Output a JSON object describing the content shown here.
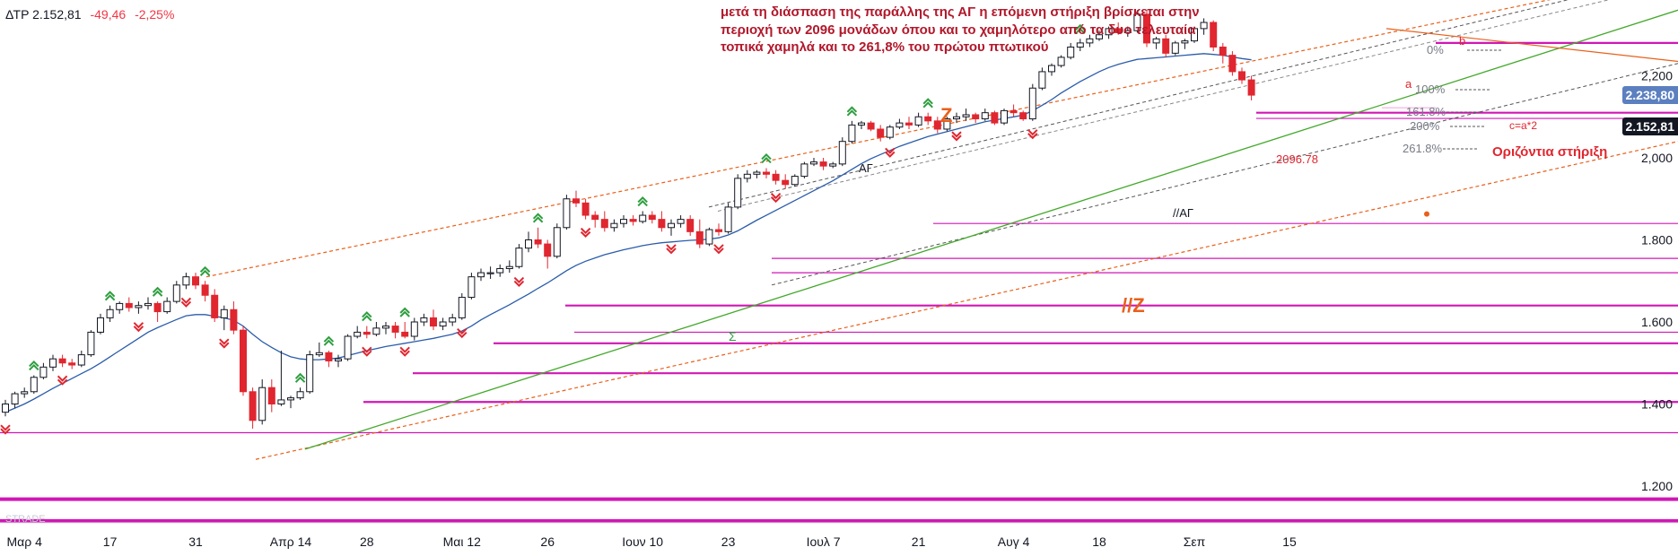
{
  "header": {
    "symbol": "ΔΤΡ",
    "last": "2.152,81",
    "change": "-49,46",
    "change_pct": "-2,25%"
  },
  "annotation": {
    "lines": [
      "μετά τη διάσπαση της παράλλης της ΑΓ η επόμενη στήριξη βρίσκεται στην",
      "περιοχή των 2096 μονάδων όπου και το χαμηλότερο από τα δυο τελευταία",
      "τοπικά χαμηλά και το 261,8% του πρώτου πτωτικού"
    ]
  },
  "price_badges": {
    "ma_value": "2.238,80",
    "last_value": "2.152,81",
    "ma_color": "#5b7fbf",
    "last_color": "#131722"
  },
  "colors": {
    "up": "#131722",
    "down": "#e0262f",
    "ma": "#2a5caa",
    "support": "#d017b5",
    "channel_orange": "#e8601b",
    "channel_gray": "#555555",
    "trend_green": "#43a82b",
    "arrow_green": "#2e9e3e",
    "arrow_red": "#e0262f",
    "annotation": "#b2182b"
  },
  "chart_data": {
    "type": "candlestick",
    "title": "",
    "xlabel": "",
    "ylabel": "",
    "ylim": [
      1100,
      2300
    ],
    "y_ticks": [
      "1.200",
      "1.400",
      "1.600",
      "1.800",
      "2,000",
      "2,200"
    ],
    "y_tick_values": [
      1200,
      1400,
      1600,
      1800,
      2000,
      2200
    ],
    "x_ticks": [
      "Μαρ 4",
      "17",
      "31",
      "Απρ 14",
      "28",
      "Μαι 12",
      "26",
      "Ιουν 10",
      "23",
      "Ιουλ 7",
      "21",
      "Αυγ 4",
      "18",
      "Σεπ",
      "15"
    ],
    "x_tick_index": [
      2,
      11,
      20,
      30,
      38,
      48,
      57,
      67,
      76,
      86,
      96,
      106,
      115,
      125,
      135
    ],
    "bars": [
      [
        1380,
        1410,
        1370,
        1400
      ],
      [
        1400,
        1430,
        1390,
        1425
      ],
      [
        1425,
        1440,
        1415,
        1430
      ],
      [
        1430,
        1470,
        1425,
        1465
      ],
      [
        1465,
        1500,
        1460,
        1490
      ],
      [
        1490,
        1520,
        1480,
        1510
      ],
      [
        1510,
        1520,
        1490,
        1500
      ],
      [
        1500,
        1510,
        1485,
        1495
      ],
      [
        1495,
        1530,
        1490,
        1520
      ],
      [
        1520,
        1580,
        1515,
        1575
      ],
      [
        1575,
        1620,
        1570,
        1610
      ],
      [
        1610,
        1640,
        1600,
        1630
      ],
      [
        1630,
        1650,
        1620,
        1645
      ],
      [
        1645,
        1660,
        1625,
        1635
      ],
      [
        1635,
        1650,
        1620,
        1640
      ],
      [
        1640,
        1660,
        1630,
        1645
      ],
      [
        1645,
        1650,
        1600,
        1625
      ],
      [
        1625,
        1660,
        1620,
        1650
      ],
      [
        1650,
        1700,
        1645,
        1690
      ],
      [
        1690,
        1720,
        1680,
        1710
      ],
      [
        1710,
        1720,
        1680,
        1690
      ],
      [
        1690,
        1700,
        1650,
        1665
      ],
      [
        1665,
        1680,
        1600,
        1610
      ],
      [
        1610,
        1640,
        1580,
        1630
      ],
      [
        1630,
        1650,
        1570,
        1580
      ],
      [
        1580,
        1590,
        1420,
        1430
      ],
      [
        1430,
        1440,
        1340,
        1360
      ],
      [
        1360,
        1460,
        1350,
        1440
      ],
      [
        1440,
        1460,
        1380,
        1400
      ],
      [
        1400,
        1530,
        1395,
        1410
      ],
      [
        1410,
        1420,
        1390,
        1415
      ],
      [
        1415,
        1440,
        1410,
        1430
      ],
      [
        1430,
        1530,
        1425,
        1520
      ],
      [
        1520,
        1550,
        1515,
        1525
      ],
      [
        1525,
        1530,
        1490,
        1505
      ],
      [
        1505,
        1520,
        1490,
        1510
      ],
      [
        1510,
        1570,
        1505,
        1565
      ],
      [
        1565,
        1590,
        1560,
        1575
      ],
      [
        1575,
        1590,
        1560,
        1570
      ],
      [
        1570,
        1600,
        1565,
        1585
      ],
      [
        1585,
        1600,
        1570,
        1590
      ],
      [
        1590,
        1600,
        1560,
        1575
      ],
      [
        1575,
        1600,
        1560,
        1565
      ],
      [
        1565,
        1610,
        1555,
        1600
      ],
      [
        1600,
        1620,
        1590,
        1610
      ],
      [
        1610,
        1630,
        1580,
        1590
      ],
      [
        1590,
        1610,
        1580,
        1600
      ],
      [
        1600,
        1620,
        1590,
        1610
      ],
      [
        1610,
        1670,
        1605,
        1660
      ],
      [
        1660,
        1720,
        1655,
        1710
      ],
      [
        1710,
        1730,
        1700,
        1720
      ],
      [
        1720,
        1735,
        1705,
        1720
      ],
      [
        1720,
        1740,
        1710,
        1730
      ],
      [
        1730,
        1750,
        1720,
        1735
      ],
      [
        1735,
        1790,
        1730,
        1780
      ],
      [
        1780,
        1820,
        1770,
        1800
      ],
      [
        1800,
        1830,
        1780,
        1790
      ],
      [
        1790,
        1800,
        1730,
        1760
      ],
      [
        1760,
        1840,
        1755,
        1830
      ],
      [
        1830,
        1910,
        1825,
        1900
      ],
      [
        1900,
        1920,
        1880,
        1890
      ],
      [
        1890,
        1900,
        1850,
        1860
      ],
      [
        1860,
        1870,
        1830,
        1850
      ],
      [
        1850,
        1870,
        1820,
        1830
      ],
      [
        1830,
        1850,
        1820,
        1840
      ],
      [
        1840,
        1860,
        1830,
        1850
      ],
      [
        1850,
        1860,
        1835,
        1845
      ],
      [
        1845,
        1870,
        1840,
        1860
      ],
      [
        1860,
        1870,
        1840,
        1850
      ],
      [
        1850,
        1870,
        1820,
        1830
      ],
      [
        1830,
        1850,
        1810,
        1840
      ],
      [
        1840,
        1860,
        1830,
        1850
      ],
      [
        1850,
        1860,
        1810,
        1820
      ],
      [
        1820,
        1850,
        1780,
        1790
      ],
      [
        1790,
        1830,
        1785,
        1825
      ],
      [
        1825,
        1840,
        1810,
        1820
      ],
      [
        1820,
        1890,
        1815,
        1880
      ],
      [
        1880,
        1960,
        1875,
        1950
      ],
      [
        1950,
        1970,
        1940,
        1960
      ],
      [
        1960,
        1970,
        1950,
        1965
      ],
      [
        1965,
        1975,
        1950,
        1960
      ],
      [
        1960,
        1970,
        1935,
        1945
      ],
      [
        1945,
        1960,
        1925,
        1935
      ],
      [
        1935,
        1960,
        1930,
        1955
      ],
      [
        1955,
        1990,
        1950,
        1985
      ],
      [
        1985,
        2000,
        1980,
        1990
      ],
      [
        1990,
        2000,
        1970,
        1980
      ],
      [
        1980,
        1990,
        1975,
        1985
      ],
      [
        1985,
        2050,
        1980,
        2040
      ],
      [
        2040,
        2090,
        2035,
        2080
      ],
      [
        2080,
        2090,
        2070,
        2085
      ],
      [
        2085,
        2090,
        2065,
        2070
      ],
      [
        2070,
        2080,
        2040,
        2050
      ],
      [
        2050,
        2080,
        2045,
        2075
      ],
      [
        2075,
        2095,
        2070,
        2085
      ],
      [
        2085,
        2100,
        2070,
        2080
      ],
      [
        2080,
        2110,
        2075,
        2100
      ],
      [
        2100,
        2110,
        2080,
        2090
      ],
      [
        2090,
        2100,
        2060,
        2070
      ],
      [
        2070,
        2100,
        2065,
        2095
      ],
      [
        2095,
        2110,
        2085,
        2100
      ],
      [
        2100,
        2120,
        2090,
        2105
      ],
      [
        2105,
        2110,
        2085,
        2095
      ],
      [
        2095,
        2120,
        2090,
        2110
      ],
      [
        2110,
        2115,
        2080,
        2085
      ],
      [
        2085,
        2120,
        2080,
        2115
      ],
      [
        2115,
        2130,
        2100,
        2110
      ],
      [
        2110,
        2115,
        2090,
        2095
      ],
      [
        2095,
        2180,
        2090,
        2170
      ],
      [
        2170,
        2220,
        2165,
        2210
      ],
      [
        2210,
        2230,
        2200,
        2225
      ],
      [
        2225,
        2250,
        2220,
        2245
      ],
      [
        2245,
        2280,
        2240,
        2270
      ],
      [
        2270,
        2290,
        2260,
        2280
      ],
      [
        2280,
        2300,
        2270,
        2290
      ],
      [
        2290,
        2310,
        2285,
        2300
      ],
      [
        2300,
        2320,
        2290,
        2315
      ],
      [
        2315,
        2330,
        2300,
        2305
      ],
      [
        2305,
        2320,
        2295,
        2310
      ],
      [
        2310,
        2360,
        2305,
        2350
      ],
      [
        2350,
        2360,
        2270,
        2280
      ],
      [
        2280,
        2295,
        2265,
        2290
      ],
      [
        2290,
        2300,
        2245,
        2255
      ],
      [
        2255,
        2285,
        2250,
        2280
      ],
      [
        2280,
        2290,
        2265,
        2285
      ],
      [
        2285,
        2320,
        2280,
        2315
      ],
      [
        2315,
        2340,
        2300,
        2330
      ],
      [
        2330,
        2335,
        2260,
        2270
      ],
      [
        2270,
        2280,
        2230,
        2250
      ],
      [
        2250,
        2260,
        2200,
        2210
      ],
      [
        2210,
        2220,
        2180,
        2190
      ],
      [
        2190,
        2200,
        2140,
        2152.81
      ]
    ],
    "moving_average": [
      1380,
      1390,
      1400,
      1412,
      1425,
      1438,
      1450,
      1462,
      1474,
      1486,
      1500,
      1515,
      1530,
      1545,
      1560,
      1575,
      1586,
      1596,
      1606,
      1615,
      1618,
      1618,
      1614,
      1610,
      1604,
      1590,
      1570,
      1552,
      1538,
      1525,
      1515,
      1510,
      1508,
      1508,
      1510,
      1512,
      1518,
      1524,
      1530,
      1535,
      1540,
      1544,
      1548,
      1552,
      1556,
      1560,
      1565,
      1570,
      1578,
      1590,
      1605,
      1618,
      1630,
      1642,
      1655,
      1668,
      1682,
      1695,
      1710,
      1725,
      1738,
      1748,
      1756,
      1764,
      1770,
      1776,
      1781,
      1786,
      1790,
      1793,
      1795,
      1797,
      1799,
      1800,
      1802,
      1805,
      1812,
      1822,
      1835,
      1848,
      1860,
      1872,
      1884,
      1896,
      1908,
      1920,
      1932,
      1944,
      1958,
      1972,
      1986,
      1998,
      2008,
      2018,
      2028,
      2036,
      2044,
      2052,
      2058,
      2064,
      2070,
      2076,
      2082,
      2088,
      2092,
      2096,
      2100,
      2104,
      2115,
      2128,
      2142,
      2158,
      2172,
      2186,
      2198,
      2210,
      2220,
      2228,
      2234,
      2240,
      2242,
      2244,
      2246,
      2248,
      2250,
      2252,
      2254,
      2252,
      2250,
      2246,
      2242,
      2238.8
    ],
    "support_levels": [
      {
        "price": 2110,
        "weight": "thick"
      },
      {
        "price": 2096,
        "weight": "thin"
      },
      {
        "price": 2280,
        "weight": "thick"
      },
      {
        "price": 1840,
        "weight": "thin"
      },
      {
        "price": 1755,
        "weight": "thin"
      },
      {
        "price": 1720,
        "weight": "thin"
      },
      {
        "price": 1640,
        "weight": "thick"
      },
      {
        "price": 1575,
        "weight": "thin"
      },
      {
        "price": 1548,
        "weight": "thick"
      },
      {
        "price": 1475,
        "weight": "thick"
      },
      {
        "price": 1405,
        "weight": "thick"
      },
      {
        "price": 1330,
        "weight": "thin"
      },
      {
        "price": 1168,
        "weight": "thick"
      },
      {
        "price": 1115,
        "weight": "thick"
      }
    ],
    "labels": {
      "Z": "Z",
      "ZP": "//Z",
      "AG": "ΑΓ",
      "AGP": "//ΑΓ",
      "S": "Σ",
      "low_value": "2096.78",
      "horizontal_support": "Οριζόντια στήριξη",
      "fib_0": "0%",
      "fib_100": "100%",
      "fib_1618": "161.8%",
      "fib_200": "200%",
      "fib_2618": "261.8%",
      "a": "a",
      "b": "b",
      "c": "c=a*2"
    },
    "up_arrows": [
      3,
      11,
      16,
      21,
      31,
      34,
      38,
      42,
      56,
      67,
      80,
      89,
      97,
      113
    ],
    "down_arrows": [
      0,
      6,
      14,
      19,
      23,
      38,
      42,
      48,
      54,
      61,
      70,
      75,
      81,
      93,
      100,
      108
    ]
  },
  "watermark": "STRADE"
}
